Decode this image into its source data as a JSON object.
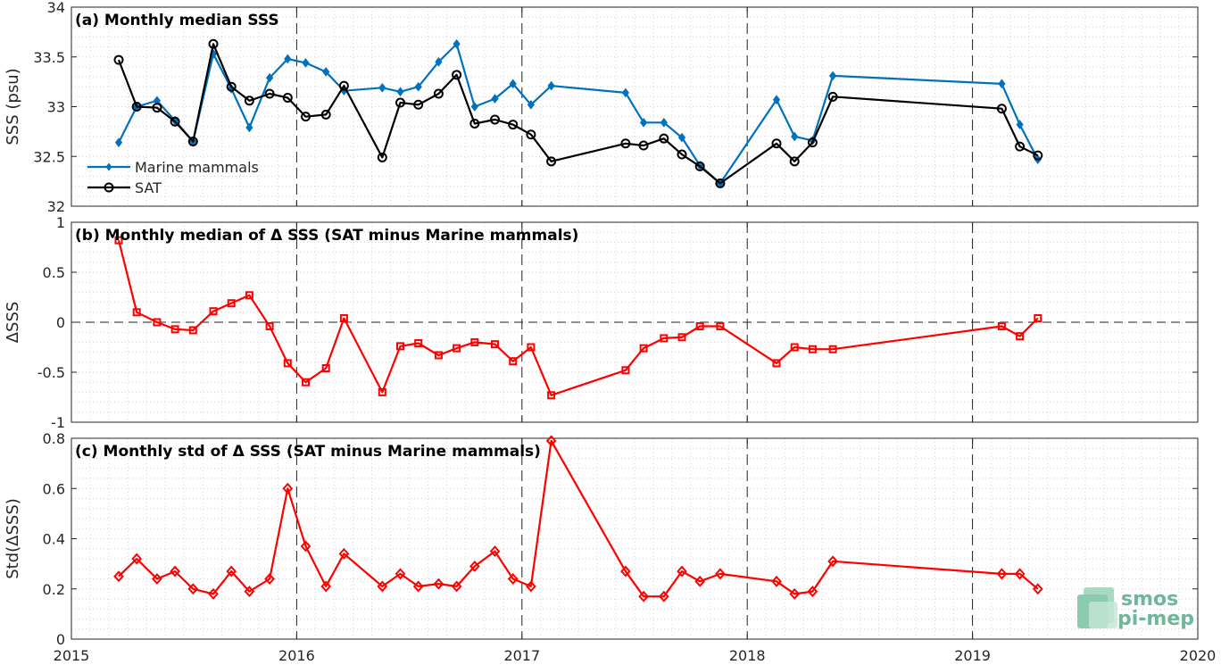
{
  "colors": {
    "marine": "#0072BD",
    "sat": "#000000",
    "delta": "#FF0000",
    "logo": "#6fb79a"
  },
  "logo": {
    "line1": "smos",
    "line2": "pi-mep"
  },
  "x_axis": {
    "range": [
      2015,
      2020
    ],
    "ticks": [
      2015,
      2016,
      2017,
      2018,
      2019,
      2020
    ],
    "tick_labels": [
      "2015",
      "2016",
      "2017",
      "2018",
      "2019",
      "2020"
    ],
    "dashed_years": [
      2016,
      2017,
      2018,
      2019
    ]
  },
  "chart_data": [
    {
      "type": "line",
      "title": "(a) Monthly median SSS",
      "ylabel": "SSS (psu)",
      "ylim": [
        32,
        34
      ],
      "yticks": [
        32,
        32.5,
        33,
        33.5,
        34
      ],
      "ytick_labels": [
        "32",
        "32.5",
        "33",
        "33.5",
        "34"
      ],
      "grid": "dotted minor",
      "legend_position": "bottom-left",
      "series": [
        {
          "name": "Marine mammals",
          "marker": "diamond",
          "x": [
            2015.21,
            2015.29,
            2015.38,
            2015.46,
            2015.54,
            2015.63,
            2015.71,
            2015.79,
            2015.88,
            2015.96,
            2016.04,
            2016.13,
            2016.21,
            2016.38,
            2016.46,
            2016.54,
            2016.63,
            2016.71,
            2016.79,
            2016.88,
            2016.96,
            2017.04,
            2017.13,
            2017.46,
            2017.54,
            2017.63,
            2017.71,
            2017.79,
            2017.88,
            2018.13,
            2018.21,
            2018.29,
            2018.38,
            2019.13,
            2019.21,
            2019.29
          ],
          "y": [
            32.64,
            33.0,
            33.06,
            32.86,
            32.65,
            33.53,
            33.18,
            32.79,
            33.29,
            33.48,
            33.44,
            33.35,
            33.16,
            33.19,
            33.15,
            33.2,
            33.45,
            33.63,
            33.0,
            33.08,
            33.23,
            33.02,
            33.21,
            33.14,
            32.84,
            32.84,
            32.69,
            32.41,
            32.23,
            33.07,
            32.7,
            32.66,
            33.31,
            33.23,
            32.82,
            32.47
          ]
        },
        {
          "name": "SAT",
          "marker": "circle",
          "x": [
            2015.21,
            2015.29,
            2015.38,
            2015.46,
            2015.54,
            2015.63,
            2015.71,
            2015.79,
            2015.88,
            2015.96,
            2016.04,
            2016.13,
            2016.21,
            2016.38,
            2016.46,
            2016.54,
            2016.63,
            2016.71,
            2016.79,
            2016.88,
            2016.96,
            2017.04,
            2017.13,
            2017.46,
            2017.54,
            2017.63,
            2017.71,
            2017.79,
            2017.88,
            2018.13,
            2018.21,
            2018.29,
            2018.38,
            2019.13,
            2019.21,
            2019.29
          ],
          "y": [
            33.47,
            33.0,
            32.99,
            32.85,
            32.65,
            33.63,
            33.2,
            33.06,
            33.13,
            33.09,
            32.9,
            32.92,
            33.21,
            32.49,
            33.04,
            33.02,
            33.13,
            33.32,
            32.83,
            32.87,
            32.82,
            32.72,
            32.45,
            32.63,
            32.61,
            32.68,
            32.52,
            32.4,
            32.23,
            32.63,
            32.45,
            32.64,
            33.1,
            32.98,
            32.6,
            32.51
          ]
        }
      ]
    },
    {
      "type": "line",
      "title": "(b) Monthly median of Δ SSS (SAT minus Marine mammals)",
      "ylabel": "ΔSSS",
      "ylim": [
        -1,
        1
      ],
      "yticks": [
        -1,
        -0.5,
        0,
        0.5,
        1
      ],
      "ytick_labels": [
        "-1",
        "-0.5",
        "0",
        "0.5",
        "1"
      ],
      "zero_line": true,
      "series": [
        {
          "marker": "square",
          "x": [
            2015.21,
            2015.29,
            2015.38,
            2015.46,
            2015.54,
            2015.63,
            2015.71,
            2015.79,
            2015.88,
            2015.96,
            2016.04,
            2016.13,
            2016.21,
            2016.38,
            2016.46,
            2016.54,
            2016.63,
            2016.71,
            2016.79,
            2016.88,
            2016.96,
            2017.04,
            2017.13,
            2017.46,
            2017.54,
            2017.63,
            2017.71,
            2017.79,
            2017.88,
            2018.13,
            2018.21,
            2018.29,
            2018.38,
            2019.13,
            2019.21,
            2019.29
          ],
          "y": [
            0.82,
            0.1,
            0.0,
            -0.07,
            -0.08,
            0.11,
            0.19,
            0.27,
            -0.04,
            -0.41,
            -0.6,
            -0.46,
            0.04,
            -0.7,
            -0.24,
            -0.21,
            -0.33,
            -0.26,
            -0.2,
            -0.22,
            -0.39,
            -0.25,
            -0.73,
            -0.48,
            -0.26,
            -0.16,
            -0.15,
            -0.04,
            -0.04,
            -0.41,
            -0.25,
            -0.27,
            -0.27,
            -0.04,
            -0.14,
            0.04
          ]
        }
      ]
    },
    {
      "type": "line",
      "title": "(c) Monthly std of Δ SSS (SAT minus Marine mammals)",
      "ylabel": "Std(ΔSSS)",
      "ylim": [
        0,
        0.8
      ],
      "yticks": [
        0,
        0.2,
        0.4,
        0.6,
        0.8
      ],
      "ytick_labels": [
        "0",
        "0.2",
        "0.4",
        "0.6",
        "0.8"
      ],
      "series": [
        {
          "marker": "diamond",
          "x": [
            2015.21,
            2015.29,
            2015.38,
            2015.46,
            2015.54,
            2015.63,
            2015.71,
            2015.79,
            2015.88,
            2015.96,
            2016.04,
            2016.13,
            2016.21,
            2016.38,
            2016.46,
            2016.54,
            2016.63,
            2016.71,
            2016.79,
            2016.88,
            2016.96,
            2017.04,
            2017.13,
            2017.46,
            2017.54,
            2017.63,
            2017.71,
            2017.79,
            2017.88,
            2018.13,
            2018.21,
            2018.29,
            2018.38,
            2019.13,
            2019.21,
            2019.29
          ],
          "y": [
            0.25,
            0.32,
            0.24,
            0.27,
            0.2,
            0.18,
            0.27,
            0.19,
            0.24,
            0.6,
            0.37,
            0.21,
            0.34,
            0.21,
            0.26,
            0.21,
            0.22,
            0.21,
            0.29,
            0.35,
            0.24,
            0.21,
            0.79,
            0.27,
            0.17,
            0.17,
            0.27,
            0.23,
            0.26,
            0.23,
            0.18,
            0.19,
            0.31,
            0.26,
            0.26,
            0.2
          ]
        }
      ]
    }
  ]
}
